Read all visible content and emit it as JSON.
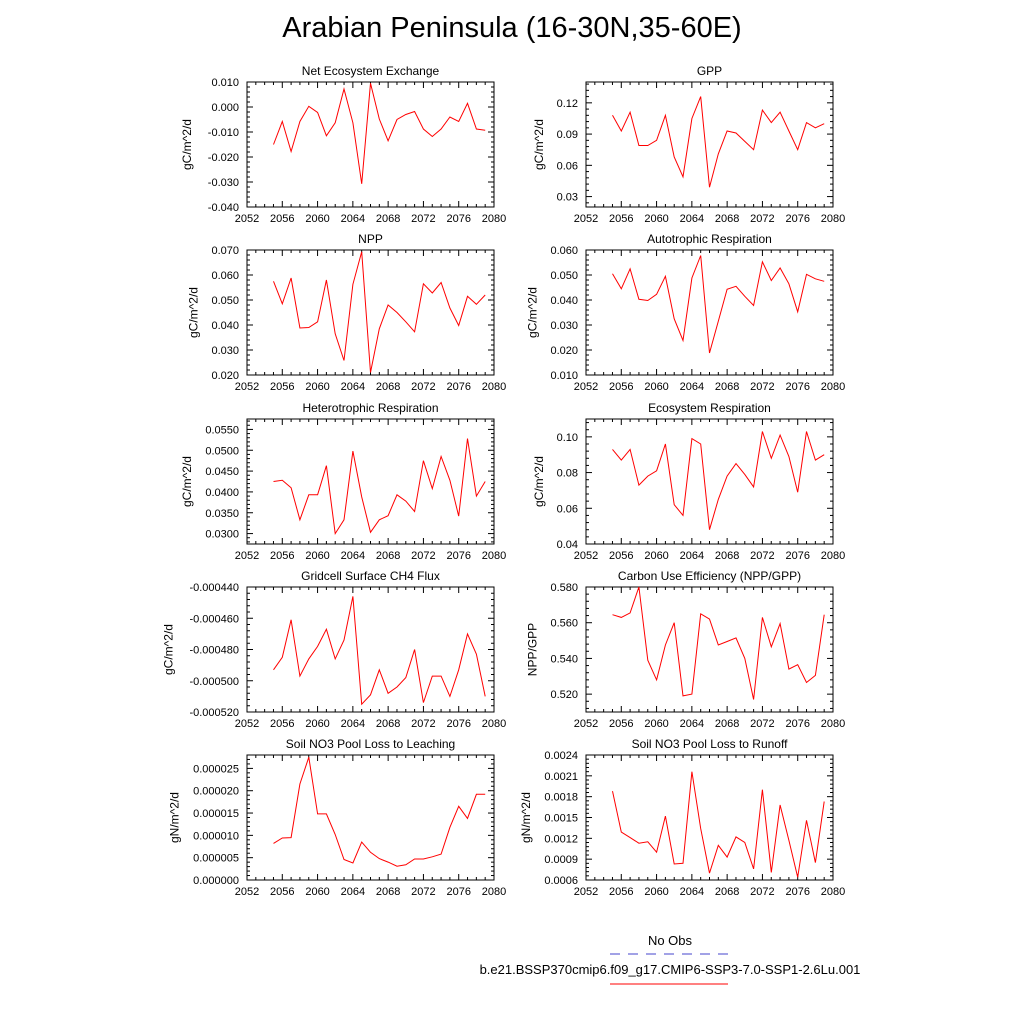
{
  "title": "Arabian Peninsula (16-30N,35-60E)",
  "legend": {
    "entries": [
      {
        "label": "No Obs",
        "color": "#4444cc",
        "dash": true
      },
      {
        "label": "b.e21.BSSP370cmip6.f09_g17.CMIP6-SSP3-7.0-SSP1-2.6Lu.001",
        "color": "#ff0000",
        "dash": false
      }
    ]
  },
  "chart_data": [
    {
      "type": "line",
      "title": "Net Ecosystem Exchange",
      "xlabel": "",
      "ylabel": "gC/m^2/d",
      "xlim": [
        2052,
        2080
      ],
      "ylim": [
        -0.04,
        0.01
      ],
      "xticks": [
        "2052",
        "2056",
        "2060",
        "2064",
        "2068",
        "2072",
        "2076",
        "2080"
      ],
      "yticks": [
        "0.010",
        "0.000",
        "-0.010",
        "-0.020",
        "-0.030",
        "-0.040"
      ],
      "color": "#ff0000",
      "x": [
        2055,
        2056,
        2057,
        2058,
        2059,
        2060,
        2061,
        2062,
        2063,
        2064,
        2065,
        2066,
        2067,
        2068,
        2069,
        2070,
        2071,
        2072,
        2073,
        2074,
        2075,
        2076,
        2077,
        2078,
        2079
      ],
      "y": [
        -0.015,
        -0.0058,
        -0.0178,
        -0.0058,
        0.0003,
        -0.0022,
        -0.0115,
        -0.0063,
        0.0072,
        -0.0063,
        -0.0307,
        0.0095,
        -0.0048,
        -0.0135,
        -0.005,
        -0.003,
        -0.0018,
        -0.0088,
        -0.0118,
        -0.0088,
        -0.004,
        -0.0058,
        0.0015,
        -0.0088,
        -0.0093
      ]
    },
    {
      "type": "line",
      "title": "GPP",
      "xlabel": "",
      "ylabel": "gC/m^2/d",
      "xlim": [
        2052,
        2080
      ],
      "ylim": [
        0.02,
        0.14
      ],
      "xticks": [
        "2052",
        "2056",
        "2060",
        "2064",
        "2068",
        "2072",
        "2076",
        "2080"
      ],
      "yticks": [
        "0.12",
        "0.09",
        "0.06",
        "0.03"
      ],
      "color": "#ff0000",
      "x": [
        2055,
        2056,
        2057,
        2058,
        2059,
        2060,
        2061,
        2062,
        2063,
        2064,
        2065,
        2066,
        2067,
        2068,
        2069,
        2070,
        2071,
        2072,
        2073,
        2074,
        2075,
        2076,
        2077,
        2078,
        2079
      ],
      "y": [
        0.108,
        0.093,
        0.111,
        0.079,
        0.079,
        0.084,
        0.108,
        0.068,
        0.049,
        0.105,
        0.126,
        0.039,
        0.071,
        0.093,
        0.091,
        0.083,
        0.075,
        0.113,
        0.101,
        0.111,
        0.093,
        0.075,
        0.101,
        0.096,
        0.1
      ]
    },
    {
      "type": "line",
      "title": "NPP",
      "xlabel": "",
      "ylabel": "gC/m^2/d",
      "xlim": [
        2052,
        2080
      ],
      "ylim": [
        0.02,
        0.07
      ],
      "xticks": [
        "2052",
        "2056",
        "2060",
        "2064",
        "2068",
        "2072",
        "2076",
        "2080"
      ],
      "yticks": [
        "0.070",
        "0.060",
        "0.050",
        "0.040",
        "0.030",
        "0.020"
      ],
      "color": "#ff0000",
      "x": [
        2055,
        2056,
        2057,
        2058,
        2059,
        2060,
        2061,
        2062,
        2063,
        2064,
        2065,
        2066,
        2067,
        2068,
        2069,
        2070,
        2071,
        2072,
        2073,
        2074,
        2075,
        2076,
        2077,
        2078,
        2079
      ],
      "y": [
        0.0575,
        0.0485,
        0.0588,
        0.0388,
        0.039,
        0.0413,
        0.058,
        0.0365,
        0.0258,
        0.0563,
        0.0693,
        0.021,
        0.0385,
        0.048,
        0.045,
        0.0413,
        0.0373,
        0.0565,
        0.0528,
        0.057,
        0.0468,
        0.0398,
        0.0515,
        0.0483,
        0.052
      ]
    },
    {
      "type": "line",
      "title": "Autotrophic Respiration",
      "xlabel": "",
      "ylabel": "gC/m^2/d",
      "xlim": [
        2052,
        2080
      ],
      "ylim": [
        0.01,
        0.06
      ],
      "xticks": [
        "2052",
        "2056",
        "2060",
        "2064",
        "2068",
        "2072",
        "2076",
        "2080"
      ],
      "yticks": [
        "0.060",
        "0.050",
        "0.040",
        "0.030",
        "0.020",
        "0.010"
      ],
      "color": "#ff0000",
      "x": [
        2055,
        2056,
        2057,
        2058,
        2059,
        2060,
        2061,
        2062,
        2063,
        2064,
        2065,
        2066,
        2067,
        2068,
        2069,
        2070,
        2071,
        2072,
        2073,
        2074,
        2075,
        2076,
        2077,
        2078,
        2079
      ],
      "y": [
        0.0505,
        0.0445,
        0.0525,
        0.0403,
        0.0398,
        0.0423,
        0.0495,
        0.0325,
        0.0238,
        0.0488,
        0.0578,
        0.0188,
        0.0315,
        0.0443,
        0.0455,
        0.0415,
        0.0378,
        0.0553,
        0.0478,
        0.0528,
        0.0465,
        0.0353,
        0.0503,
        0.0485,
        0.0475
      ]
    },
    {
      "type": "line",
      "title": "Heterotrophic Respiration",
      "xlabel": "",
      "ylabel": "gC/m^2/d",
      "xlim": [
        2052,
        2080
      ],
      "ylim": [
        0.0275,
        0.0575
      ],
      "xticks": [
        "2052",
        "2056",
        "2060",
        "2064",
        "2068",
        "2072",
        "2076",
        "2080"
      ],
      "yticks": [
        "0.0550",
        "0.0500",
        "0.0450",
        "0.0400",
        "0.0350",
        "0.0300"
      ],
      "color": "#ff0000",
      "x": [
        2055,
        2056,
        2057,
        2058,
        2059,
        2060,
        2061,
        2062,
        2063,
        2064,
        2065,
        2066,
        2067,
        2068,
        2069,
        2070,
        2071,
        2072,
        2073,
        2074,
        2075,
        2076,
        2077,
        2078,
        2079
      ],
      "y": [
        0.0425,
        0.0428,
        0.041,
        0.0333,
        0.0393,
        0.0393,
        0.0463,
        0.03,
        0.0333,
        0.0498,
        0.0388,
        0.0303,
        0.0333,
        0.0343,
        0.0393,
        0.0378,
        0.0353,
        0.0475,
        0.0408,
        0.0485,
        0.0428,
        0.0342,
        0.0528,
        0.039,
        0.0425
      ]
    },
    {
      "type": "line",
      "title": "Ecosystem Respiration",
      "xlabel": "",
      "ylabel": "gC/m^2/d",
      "xlim": [
        2052,
        2080
      ],
      "ylim": [
        0.04,
        0.11
      ],
      "xticks": [
        "2052",
        "2056",
        "2060",
        "2064",
        "2068",
        "2072",
        "2076",
        "2080"
      ],
      "yticks": [
        "0.10",
        "0.08",
        "0.06",
        "0.04"
      ],
      "color": "#ff0000",
      "x": [
        2055,
        2056,
        2057,
        2058,
        2059,
        2060,
        2061,
        2062,
        2063,
        2064,
        2065,
        2066,
        2067,
        2068,
        2069,
        2070,
        2071,
        2072,
        2073,
        2074,
        2075,
        2076,
        2077,
        2078,
        2079
      ],
      "y": [
        0.093,
        0.087,
        0.093,
        0.073,
        0.078,
        0.081,
        0.096,
        0.062,
        0.056,
        0.099,
        0.096,
        0.048,
        0.065,
        0.078,
        0.085,
        0.079,
        0.072,
        0.103,
        0.088,
        0.101,
        0.089,
        0.069,
        0.103,
        0.087,
        0.09
      ]
    },
    {
      "type": "line",
      "title": "Gridcell Surface CH4 Flux",
      "xlabel": "",
      "ylabel": "gC/m^2/d",
      "xlim": [
        2052,
        2080
      ],
      "ylim": [
        -0.00052,
        -0.00044
      ],
      "xticks": [
        "2052",
        "2056",
        "2060",
        "2064",
        "2068",
        "2072",
        "2076",
        "2080"
      ],
      "yticks": [
        "-0.000440",
        "-0.000460",
        "-0.000480",
        "-0.000500",
        "-0.000520"
      ],
      "color": "#ff0000",
      "x": [
        2055,
        2056,
        2057,
        2058,
        2059,
        2060,
        2061,
        2062,
        2063,
        2064,
        2065,
        2066,
        2067,
        2068,
        2069,
        2070,
        2071,
        2072,
        2073,
        2074,
        2075,
        2076,
        2077,
        2078,
        2079
      ],
      "y": [
        -0.000493,
        -0.000485,
        -0.000461,
        -0.000497,
        -0.000486,
        -0.000478,
        -0.000467,
        -0.000486,
        -0.000474,
        -0.000446,
        -0.000515,
        -0.000509,
        -0.000493,
        -0.000508,
        -0.000504,
        -0.000498,
        -0.00048,
        -0.000514,
        -0.000497,
        -0.000497,
        -0.00051,
        -0.000493,
        -0.00047,
        -0.000483,
        -0.00051
      ]
    },
    {
      "type": "line",
      "title": "Carbon Use Efficiency (NPP/GPP)",
      "xlabel": "",
      "ylabel": "NPP/GPP",
      "xlim": [
        2052,
        2080
      ],
      "ylim": [
        0.51,
        0.58
      ],
      "xticks": [
        "2052",
        "2056",
        "2060",
        "2064",
        "2068",
        "2072",
        "2076",
        "2080"
      ],
      "yticks": [
        "0.580",
        "0.560",
        "0.540",
        "0.520"
      ],
      "color": "#ff0000",
      "x": [
        2055,
        2056,
        2057,
        2058,
        2059,
        2060,
        2061,
        2062,
        2063,
        2064,
        2065,
        2066,
        2067,
        2068,
        2069,
        2070,
        2071,
        2072,
        2073,
        2074,
        2075,
        2076,
        2077,
        2078,
        2079
      ],
      "y": [
        0.5645,
        0.563,
        0.5655,
        0.58,
        0.539,
        0.528,
        0.5475,
        0.56,
        0.519,
        0.52,
        0.565,
        0.562,
        0.5475,
        0.5495,
        0.5515,
        0.54,
        0.517,
        0.563,
        0.5465,
        0.5595,
        0.534,
        0.5365,
        0.5265,
        0.5305,
        0.5645
      ]
    },
    {
      "type": "line",
      "title": "Soil NO3 Pool Loss to Leaching",
      "xlabel": "",
      "ylabel": "gN/m^2/d",
      "xlim": [
        2052,
        2080
      ],
      "ylim": [
        0,
        2.8e-05
      ],
      "xticks": [
        "2052",
        "2056",
        "2060",
        "2064",
        "2068",
        "2072",
        "2076",
        "2080"
      ],
      "yticks": [
        "0.000025",
        "0.000020",
        "0.000015",
        "0.000010",
        "0.000005",
        "0.000000"
      ],
      "color": "#ff0000",
      "x": [
        2055,
        2056,
        2057,
        2058,
        2059,
        2060,
        2061,
        2062,
        2063,
        2064,
        2065,
        2066,
        2067,
        2068,
        2069,
        2070,
        2071,
        2072,
        2073,
        2074,
        2075,
        2076,
        2077,
        2078,
        2079
      ],
      "y": [
        8.2e-06,
        9.4e-06,
        9.5e-06,
        2.15e-05,
        2.75e-05,
        1.48e-05,
        1.48e-05,
        1.02e-05,
        4.6e-06,
        3.8e-06,
        8.5e-06,
        6.2e-06,
        4.8e-06,
        4e-06,
        3.1e-06,
        3.4e-06,
        4.7e-06,
        4.7e-06,
        5.2e-06,
        5.8e-06,
        1.18e-05,
        1.65e-05,
        1.38e-05,
        1.92e-05,
        1.92e-05
      ]
    },
    {
      "type": "line",
      "title": "Soil NO3 Pool Loss to Runoff",
      "xlabel": "",
      "ylabel": "gN/m^2/d",
      "xlim": [
        2052,
        2080
      ],
      "ylim": [
        0.0006,
        0.0024
      ],
      "xticks": [
        "2052",
        "2056",
        "2060",
        "2064",
        "2068",
        "2072",
        "2076",
        "2080"
      ],
      "yticks": [
        "0.0024",
        "0.0021",
        "0.0018",
        "0.0015",
        "0.0012",
        "0.0009",
        "0.0006"
      ],
      "color": "#ff0000",
      "x": [
        2055,
        2056,
        2057,
        2058,
        2059,
        2060,
        2061,
        2062,
        2063,
        2064,
        2065,
        2066,
        2067,
        2068,
        2069,
        2070,
        2071,
        2072,
        2073,
        2074,
        2075,
        2076,
        2077,
        2078,
        2079
      ],
      "y": [
        0.00188,
        0.00129,
        0.00121,
        0.00113,
        0.00115,
        0.001,
        0.00152,
        0.00083,
        0.00084,
        0.00216,
        0.00134,
        0.0007,
        0.0011,
        0.00093,
        0.00122,
        0.00114,
        0.00076,
        0.0019,
        0.00071,
        0.00168,
        0.00117,
        0.00064,
        0.00146,
        0.00085,
        0.00173
      ]
    }
  ]
}
